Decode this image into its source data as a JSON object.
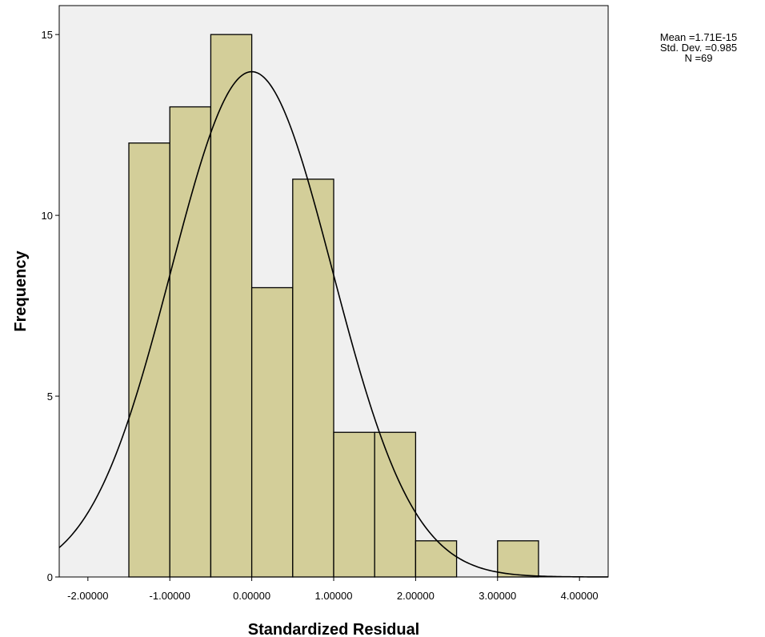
{
  "chart_data": {
    "type": "bar",
    "subtype": "histogram",
    "xlabel": "Standardized Residual",
    "ylabel": "Frequency",
    "xlim": [
      -2.35,
      4.35
    ],
    "ylim": [
      0,
      15.8
    ],
    "x_ticks": [
      -2,
      -1,
      0,
      1,
      2,
      3,
      4
    ],
    "x_tick_labels": [
      "-2.00000",
      "-1.00000",
      "0.00000",
      "1.00000",
      "2.00000",
      "3.00000",
      "4.00000"
    ],
    "y_ticks": [
      0,
      5,
      10,
      15
    ],
    "y_tick_labels": [
      "0",
      "5",
      "10",
      "15"
    ],
    "bin_edges": [
      -1.5,
      -1.0,
      -0.5,
      0.0,
      0.5,
      1.0,
      1.5,
      2.0,
      2.5,
      3.0,
      3.5
    ],
    "values": [
      12,
      13,
      15,
      8,
      11,
      4,
      4,
      1,
      0,
      1
    ],
    "normal_curve": {
      "mean": 0,
      "std": 0.985,
      "n": 69,
      "bin_width": 0.5
    },
    "stats_lines": [
      "Mean =1.71E-15",
      "Std. Dev. =0.985",
      "N =69"
    ],
    "grid": false,
    "colors": {
      "bar_fill": "#d3ce99",
      "plot_bg": "#f0f0f0",
      "stroke": "#000000"
    }
  }
}
